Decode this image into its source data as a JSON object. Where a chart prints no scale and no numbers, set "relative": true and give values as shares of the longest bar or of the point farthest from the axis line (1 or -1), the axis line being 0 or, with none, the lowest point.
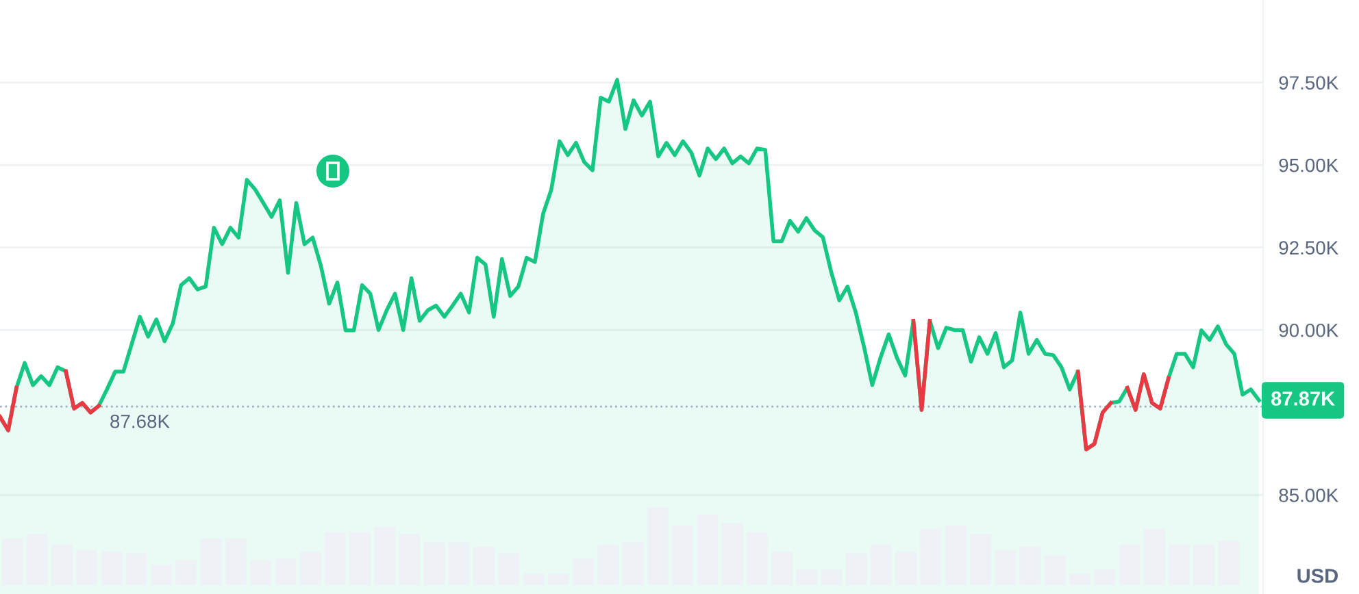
{
  "chart_data": [
    {
      "type": "area",
      "categories": [
        null,
        null,
        null,
        null,
        null,
        null,
        null,
        null,
        null,
        null,
        null,
        null,
        null,
        null,
        null,
        null,
        null,
        null,
        null,
        null,
        null,
        null,
        null,
        null,
        null,
        null,
        null,
        null,
        null,
        null,
        null,
        null,
        null,
        null,
        null,
        null,
        null,
        null,
        null,
        null,
        null,
        null,
        null,
        null,
        null,
        null,
        null,
        null,
        null,
        null,
        null,
        null,
        null,
        null,
        null,
        null,
        null,
        null,
        null,
        null,
        null,
        null,
        null,
        null,
        null,
        null,
        null,
        null,
        null,
        null,
        null,
        null,
        null,
        null,
        null,
        null,
        null,
        null,
        null,
        null,
        null,
        null,
        null,
        null,
        null,
        null,
        null,
        null,
        null,
        null,
        null,
        null,
        null,
        null,
        null,
        null,
        null,
        null,
        null,
        null,
        null,
        null,
        null,
        null,
        null,
        null,
        null,
        null,
        null,
        null,
        null,
        null,
        null,
        null,
        null,
        null,
        null,
        null,
        null,
        null,
        null,
        null,
        null,
        null,
        null,
        null,
        null,
        null,
        null,
        null,
        null,
        null,
        null,
        null,
        null,
        null,
        null,
        null,
        null,
        null,
        null,
        null,
        null,
        null,
        null,
        null,
        null,
        null,
        null,
        null,
        null,
        null,
        null,
        null
      ],
      "series": [
        {
          "type": "area",
          "color": "#16c784",
          "values": [
            87.37,
            86.96,
            88.25,
            89.0,
            88.33,
            88.6,
            88.33,
            88.87,
            88.75,
            87.62,
            87.79,
            87.5,
            87.7,
            88.2,
            88.74,
            88.74,
            89.57,
            90.4,
            89.8,
            90.32,
            89.66,
            90.2,
            91.36,
            91.57,
            91.23,
            91.32,
            93.1,
            92.6,
            93.1,
            92.8,
            94.55,
            94.26,
            93.85,
            93.43,
            93.93,
            91.73,
            93.85,
            92.6,
            92.8,
            91.94,
            90.8,
            91.44,
            89.99,
            89.99,
            91.36,
            91.1,
            90.0,
            90.6,
            91.1,
            90.0,
            91.57,
            90.28,
            90.6,
            90.74,
            90.4,
            90.74,
            91.1,
            90.53,
            92.19,
            91.98,
            90.4,
            92.15,
            91.03,
            91.32,
            92.19,
            92.06,
            93.52,
            94.26,
            95.72,
            95.3,
            95.67,
            95.09,
            94.84,
            97.04,
            96.92,
            97.58,
            96.09,
            96.96,
            96.5,
            96.92,
            95.26,
            95.67,
            95.3,
            95.72,
            95.38,
            94.68,
            95.5,
            95.18,
            95.5,
            95.05,
            95.26,
            95.05,
            95.5,
            95.46,
            92.69,
            92.69,
            93.31,
            92.98,
            93.39,
            93.02,
            92.81,
            91.77,
            90.9,
            91.32,
            90.53,
            89.49,
            88.33,
            89.16,
            89.87,
            89.16,
            88.62,
            90.28,
            87.58,
            90.28,
            89.45,
            90.07,
            90.0,
            90.0,
            89.04,
            89.78,
            89.28,
            89.91,
            88.87,
            89.08,
            90.53,
            89.28,
            89.7,
            89.28,
            89.24,
            88.87,
            88.2,
            88.74,
            86.38,
            86.55,
            87.5,
            87.79,
            87.83,
            88.25,
            87.58,
            88.66,
            87.79,
            87.62,
            88.54,
            89.28,
            89.28,
            88.87,
            89.99,
            89.7,
            90.11,
            89.57,
            89.28,
            88.04,
            88.2,
            87.87
          ]
        },
        {
          "type": "line",
          "color": "#ea3943",
          "values": [
            87.37,
            86.96,
            88.25,
            null,
            null,
            null,
            null,
            null,
            88.75,
            87.62,
            87.79,
            87.5,
            87.7,
            null,
            null,
            null,
            null,
            null,
            null,
            null,
            null,
            null,
            null,
            null,
            null,
            null,
            null,
            null,
            null,
            null,
            null,
            null,
            null,
            null,
            null,
            null,
            null,
            null,
            null,
            null,
            null,
            null,
            null,
            null,
            null,
            null,
            null,
            null,
            null,
            null,
            null,
            null,
            null,
            null,
            null,
            null,
            null,
            null,
            null,
            null,
            null,
            null,
            null,
            null,
            null,
            null,
            null,
            null,
            null,
            null,
            null,
            null,
            null,
            null,
            null,
            null,
            null,
            null,
            null,
            null,
            null,
            null,
            null,
            null,
            null,
            null,
            null,
            null,
            null,
            null,
            null,
            null,
            null,
            null,
            null,
            null,
            null,
            null,
            null,
            null,
            null,
            null,
            null,
            null,
            null,
            null,
            null,
            null,
            null,
            null,
            null,
            90.28,
            87.58,
            90.28,
            null,
            null,
            null,
            null,
            null,
            null,
            null,
            null,
            null,
            null,
            null,
            null,
            null,
            null,
            null,
            null,
            null,
            88.74,
            86.38,
            86.55,
            87.5,
            87.79,
            null,
            88.25,
            87.58,
            88.66,
            87.79,
            87.62,
            88.54,
            null,
            null,
            null,
            null,
            null,
            null,
            null,
            null,
            null,
            null,
            null
          ]
        }
      ],
      "ylim": [
        82,
        100
      ],
      "yticks": [
        {
          "value": 85,
          "label": "85.00K"
        },
        {
          "value": 90,
          "label": "90.00K"
        },
        {
          "value": 92.5,
          "label": "92.50K"
        },
        {
          "value": 95,
          "label": "95.00K"
        },
        {
          "value": 97.5,
          "label": "97.50K"
        }
      ],
      "grid": "y",
      "ref_lines": [
        {
          "axis": "y",
          "value": 87.68,
          "label": "87.68K",
          "color": "#a6b0c3",
          "line_style": "dotted"
        }
      ],
      "annotations": [
        "87.87K",
        "USD"
      ]
    },
    {
      "type": "bar",
      "relative": true,
      "color": "#eef1f5",
      "categories": [
        null,
        null,
        null,
        null,
        null,
        null,
        null,
        null,
        null,
        null,
        null,
        null,
        null,
        null,
        null,
        null,
        null,
        null,
        null,
        null,
        null,
        null,
        null,
        null,
        null,
        null,
        null,
        null,
        null,
        null,
        null,
        null,
        null,
        null,
        null,
        null,
        null,
        null,
        null,
        null,
        null,
        null,
        null,
        null,
        null,
        null,
        null,
        null,
        null,
        null
      ],
      "values": [
        0.6,
        0.66,
        0.52,
        0.45,
        0.43,
        0.41,
        0.26,
        0.32,
        0.6,
        0.6,
        0.32,
        0.34,
        0.43,
        0.68,
        0.68,
        0.75,
        0.66,
        0.55,
        0.55,
        0.49,
        0.41,
        0.15,
        0.15,
        0.34,
        0.52,
        0.55,
        1.0,
        0.77,
        0.91,
        0.8,
        0.68,
        0.43,
        0.2,
        0.2,
        0.41,
        0.52,
        0.43,
        0.72,
        0.77,
        0.66,
        0.45,
        0.49,
        0.38,
        0.15,
        0.2,
        0.52,
        0.72,
        0.52,
        0.52,
        0.57
      ]
    }
  ]
}
